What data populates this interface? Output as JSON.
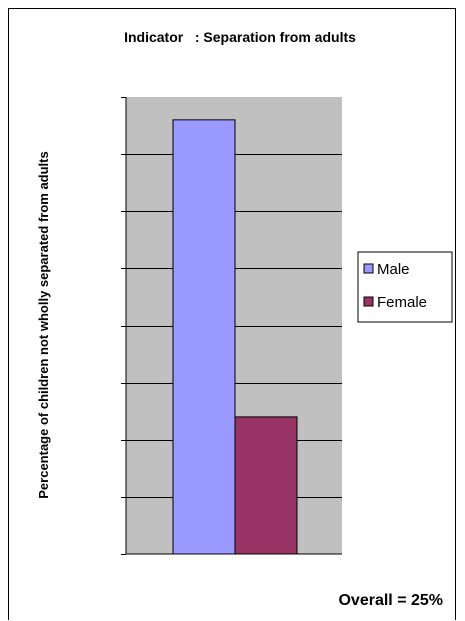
{
  "chart_data": {
    "type": "bar",
    "title": "Indicator   : Separation from adults",
    "xlabel": "",
    "ylabel": "Percentage of children not wholly separated from adults",
    "categories": [
      ""
    ],
    "series": [
      {
        "name": "Male",
        "values": [
          38
        ],
        "color": "#9999ff"
      },
      {
        "name": "Female",
        "values": [
          12
        ],
        "color": "#993366"
      }
    ],
    "ylim": [
      0,
      40
    ],
    "gridlines": 8,
    "grid": true,
    "legend_position": "right",
    "plot_background": "#c0c0c0",
    "annotation": "Overall = 25%"
  }
}
